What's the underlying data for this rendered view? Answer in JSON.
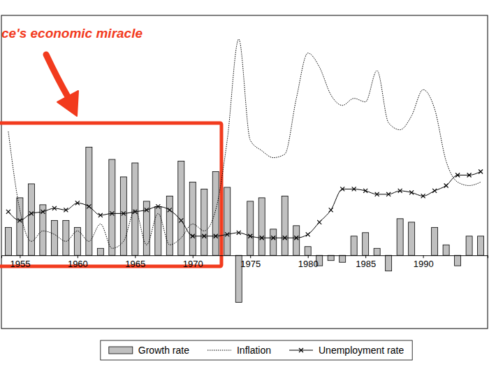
{
  "chart_data": {
    "type": "bar",
    "annotations": [
      "ce's economic miracle"
    ],
    "x": [
      1954,
      1955,
      1956,
      1957,
      1958,
      1959,
      1960,
      1961,
      1962,
      1963,
      1964,
      1965,
      1966,
      1967,
      1968,
      1969,
      1970,
      1971,
      1972,
      1973,
      1974,
      1975,
      1976,
      1977,
      1978,
      1979,
      1980,
      1981,
      1982,
      1983,
      1984,
      1985,
      1986,
      1987,
      1988,
      1989,
      1990,
      1991,
      1992,
      1993,
      1994,
      1995
    ],
    "xlim": [
      1953.4,
      1995.6
    ],
    "xticks": [
      1955,
      1960,
      1965,
      1970,
      1975,
      1980,
      1985,
      1990
    ],
    "ylim": [
      -4.2,
      13.76
    ],
    "tick_labels": "x",
    "legend": "bottom",
    "series": [
      {
        "name": "Growth rate",
        "type": "bar",
        "color": "#c0c0c0",
        "values": [
          1.6,
          3.3,
          4.1,
          2.9,
          2.0,
          2.0,
          1.6,
          6.2,
          0.4,
          5.5,
          4.5,
          5.3,
          3.1,
          2.8,
          3.4,
          5.4,
          4.2,
          3.8,
          4.8,
          3.9,
          -2.7,
          3.1,
          3.3,
          1.5,
          3.4,
          1.7,
          0.5,
          -0.6,
          -0.3,
          -0.4,
          1.1,
          1.3,
          0.4,
          -0.9,
          2.1,
          1.9,
          0,
          1.6,
          0.6,
          -0.6,
          1.1,
          1.1
        ]
      },
      {
        "name": "Inflation",
        "type": "line",
        "color": "#000000",
        "line_style": "dotted",
        "values": [
          7.1,
          2.6,
          0.8,
          1.4,
          1.2,
          0.8,
          1.4,
          0.8,
          1.8,
          0.4,
          0.8,
          2.6,
          0.6,
          2.4,
          0.6,
          1.0,
          1.8,
          1.4,
          2.6,
          6.6,
          12.4,
          6.6,
          6.0,
          5.6,
          5.8,
          9.0,
          11.6,
          10.8,
          9.2,
          8.6,
          9.0,
          8.8,
          10.6,
          7.6,
          7.2,
          8.0,
          9.5,
          8.4,
          5.4,
          4.2,
          4.0,
          4.2
        ]
      },
      {
        "name": "Unemployment rate",
        "type": "line",
        "color": "#000000",
        "line_style": "solid",
        "marker": "x",
        "values": [
          2.5,
          2.0,
          2.4,
          2.5,
          2.7,
          2.6,
          3.0,
          2.8,
          2.3,
          2.4,
          2.4,
          2.5,
          2.6,
          2.8,
          2.6,
          2.0,
          1.1,
          1.1,
          1.1,
          1.2,
          1.3,
          1.1,
          1.0,
          1.0,
          1.0,
          1.0,
          1.2,
          1.9,
          2.6,
          3.8,
          3.8,
          3.7,
          3.5,
          3.5,
          3.7,
          3.6,
          3.4,
          3.7,
          4.0,
          4.6,
          4.6,
          4.8
        ]
      }
    ]
  }
}
